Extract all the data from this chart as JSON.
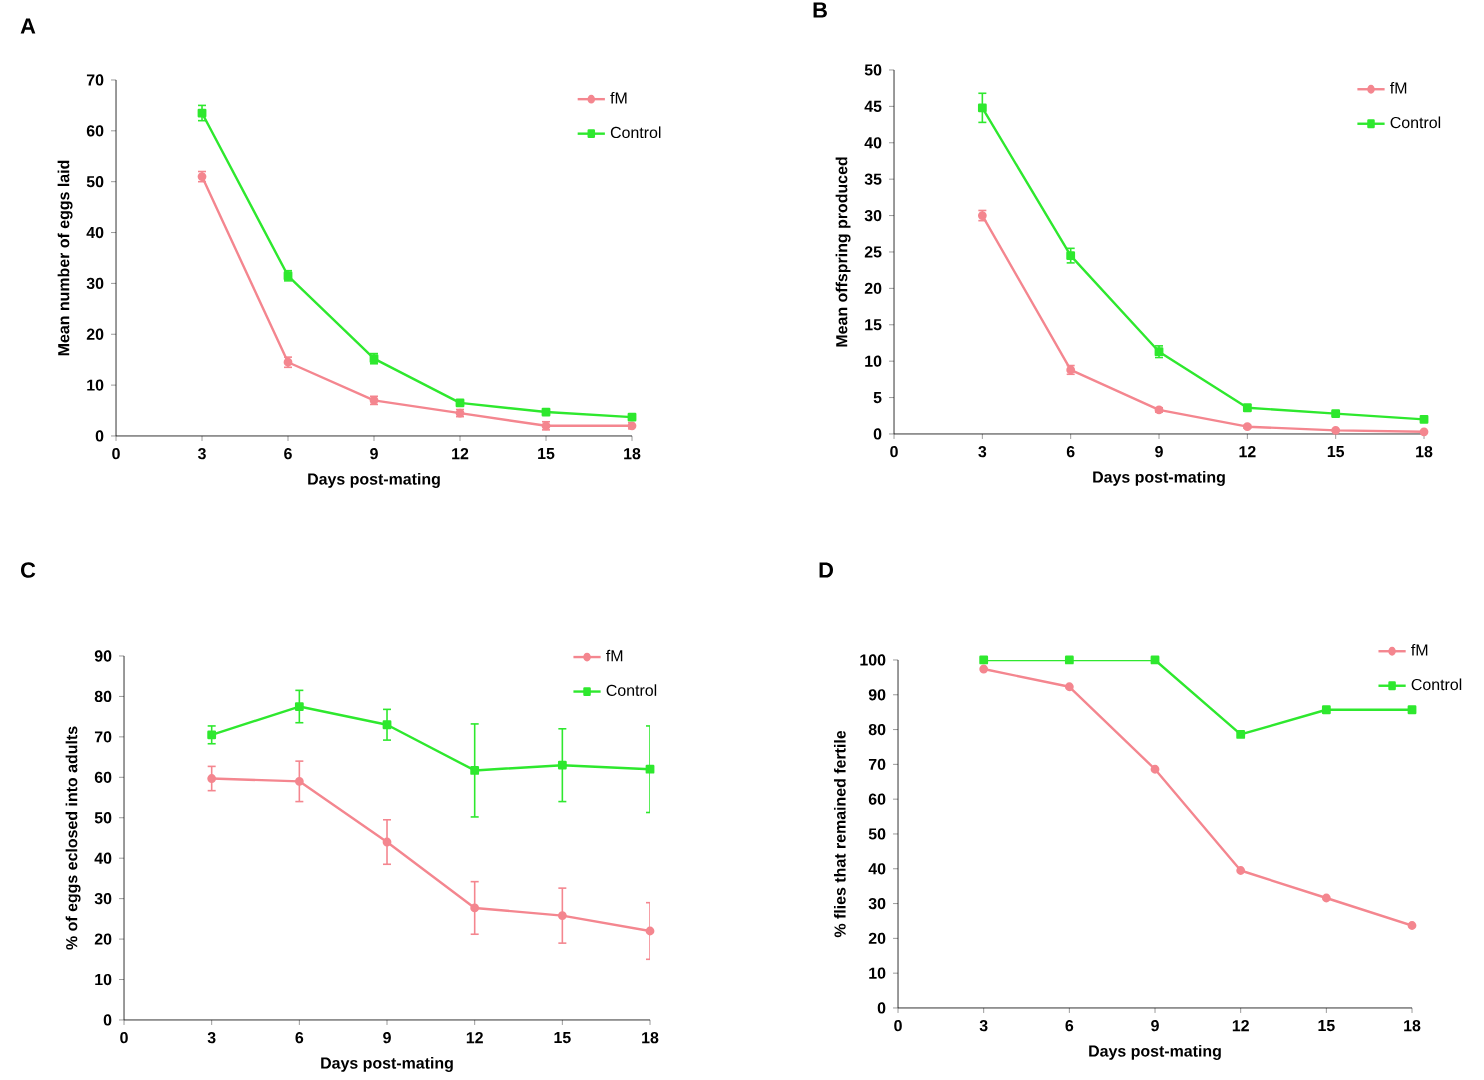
{
  "chart_data": [
    {
      "type": "line",
      "title": "A",
      "xlabel": "Days post-mating",
      "ylabel": "Mean number of eggs laid",
      "x": [
        3,
        6,
        9,
        12,
        15,
        18
      ],
      "xlim": [
        0,
        18
      ],
      "xticks": [
        0,
        3,
        6,
        9,
        12,
        15,
        18
      ],
      "ylim": [
        0,
        70
      ],
      "yticks": [
        0,
        10,
        20,
        30,
        40,
        50,
        60,
        70
      ],
      "legend": "top right",
      "grid": false,
      "series": [
        {
          "name": "fM",
          "color": "#f4868f",
          "marker": "circle",
          "values": [
            51,
            14.5,
            7,
            4.5,
            2,
            2
          ],
          "errors": [
            1,
            1,
            0.8,
            0.7,
            0.8,
            0.6
          ]
        },
        {
          "name": "Control",
          "color": "#2ee82e",
          "marker": "square",
          "values": [
            63.5,
            31.5,
            15.2,
            6.5,
            4.7,
            3.7
          ],
          "errors": [
            1.5,
            1,
            1,
            0.5,
            0.4,
            0.4
          ]
        }
      ]
    },
    {
      "type": "line",
      "title": "B",
      "xlabel": "Days post-mating",
      "ylabel": "Mean offspring produced",
      "x": [
        3,
        6,
        9,
        12,
        15,
        18
      ],
      "xlim": [
        0,
        18
      ],
      "xticks": [
        0,
        3,
        6,
        9,
        12,
        15,
        18
      ],
      "ylim": [
        0,
        50
      ],
      "yticks": [
        0,
        5,
        10,
        15,
        20,
        25,
        30,
        35,
        40,
        45,
        50
      ],
      "legend": "top right",
      "grid": false,
      "series": [
        {
          "name": "fM",
          "color": "#f4868f",
          "marker": "circle",
          "values": [
            30,
            8.8,
            3.3,
            1,
            0.5,
            0.3
          ],
          "errors": [
            0.7,
            0.6,
            0.3,
            0.2,
            0.1,
            0.1
          ]
        },
        {
          "name": "Control",
          "color": "#2ee82e",
          "marker": "square",
          "values": [
            44.8,
            24.5,
            11.3,
            3.6,
            2.8,
            2
          ],
          "errors": [
            2,
            1,
            0.8,
            0.4,
            0.3,
            0.2
          ]
        }
      ]
    },
    {
      "type": "line",
      "title": "C",
      "xlabel": "Days post-mating",
      "ylabel": "% of eggs eclosed into adults",
      "x": [
        3,
        6,
        9,
        12,
        15,
        18
      ],
      "xlim": [
        0,
        18
      ],
      "xticks": [
        0,
        3,
        6,
        9,
        12,
        15,
        18
      ],
      "ylim": [
        0,
        90
      ],
      "yticks": [
        0,
        10,
        20,
        30,
        40,
        50,
        60,
        70,
        80,
        90
      ],
      "legend": "top right",
      "grid": false,
      "series": [
        {
          "name": "fM",
          "color": "#f4868f",
          "marker": "circle",
          "values": [
            59.7,
            59,
            44,
            27.7,
            25.8,
            22
          ],
          "errors": [
            3,
            5,
            5.5,
            6.5,
            6.8,
            7
          ]
        },
        {
          "name": "Control",
          "color": "#2ee82e",
          "marker": "square",
          "values": [
            70.5,
            77.5,
            73,
            61.7,
            63,
            62
          ],
          "errors": [
            2.2,
            4,
            3.8,
            11.5,
            9,
            10.7
          ]
        }
      ]
    },
    {
      "type": "line",
      "title": "D",
      "xlabel": "Days post-mating",
      "ylabel": "%  flies that remained fertile",
      "x": [
        3,
        6,
        9,
        12,
        15,
        18
      ],
      "xlim": [
        0,
        18
      ],
      "xticks": [
        0,
        3,
        6,
        9,
        12,
        15,
        18
      ],
      "ylim": [
        0,
        100
      ],
      "yticks": [
        0,
        10,
        20,
        30,
        40,
        50,
        60,
        70,
        80,
        90,
        100
      ],
      "legend": "top right",
      "grid": false,
      "series": [
        {
          "name": "fM",
          "color": "#f4868f",
          "marker": "circle",
          "values": [
            97.4,
            92.3,
            68.6,
            39.5,
            31.6,
            23.7
          ]
        },
        {
          "name": "Control",
          "color": "#2ee82e",
          "marker": "square",
          "values": [
            100,
            100,
            100,
            78.6,
            85.7,
            85.7
          ]
        }
      ]
    }
  ]
}
